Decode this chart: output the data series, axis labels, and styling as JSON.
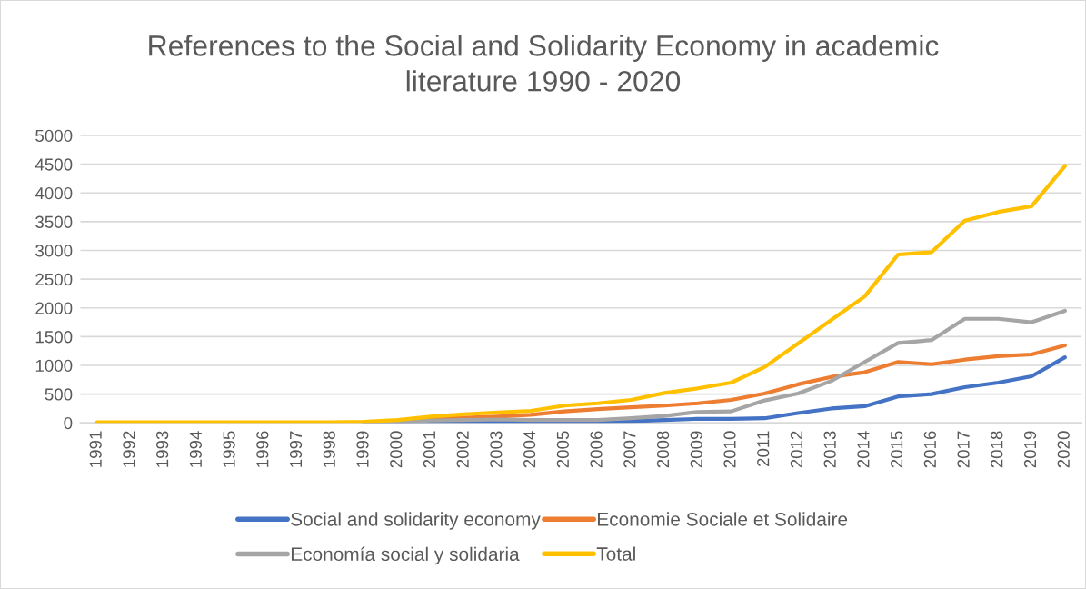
{
  "chart_data": {
    "type": "line",
    "title": "References to the Social and Solidarity Economy in academic\nliterature 1990 - 2020",
    "categories": [
      "1991",
      "1992",
      "1993",
      "1994",
      "1995",
      "1996",
      "1997",
      "1998",
      "1999",
      "2000",
      "2001",
      "2002",
      "2003",
      "2004",
      "2005",
      "2006",
      "2007",
      "2008",
      "2009",
      "2010",
      "2011",
      "2012",
      "2013",
      "2014",
      "2015",
      "2016",
      "2017",
      "2018",
      "2019",
      "2020"
    ],
    "series": [
      {
        "name": "Social and solidarity economy",
        "color": "#4472c4",
        "values": [
          null,
          null,
          null,
          null,
          null,
          null,
          null,
          null,
          0,
          0,
          10,
          10,
          10,
          10,
          20,
          20,
          30,
          50,
          70,
          70,
          80,
          170,
          250,
          290,
          460,
          500,
          620,
          700,
          810,
          1140
        ]
      },
      {
        "name": "Economie Sociale et Solidaire",
        "color": "#ed7d31",
        "values": [
          null,
          null,
          null,
          null,
          null,
          null,
          null,
          null,
          null,
          30,
          60,
          90,
          110,
          140,
          200,
          240,
          270,
          300,
          340,
          400,
          510,
          670,
          800,
          880,
          1060,
          1020,
          1100,
          1160,
          1190,
          1350
        ]
      },
      {
        "name": "Economía social y solidaria",
        "color": "#a5a5a5",
        "values": [
          null,
          null,
          null,
          null,
          null,
          null,
          null,
          null,
          0,
          10,
          40,
          50,
          60,
          50,
          50,
          50,
          80,
          120,
          190,
          200,
          390,
          510,
          730,
          1060,
          1390,
          1440,
          1810,
          1810,
          1750,
          1950
        ]
      },
      {
        "name": "Total",
        "color": "#ffc000",
        "values": [
          10,
          10,
          10,
          10,
          10,
          10,
          10,
          10,
          20,
          50,
          110,
          150,
          180,
          210,
          300,
          340,
          400,
          520,
          600,
          700,
          970,
          1380,
          1790,
          2200,
          2930,
          2970,
          3520,
          3670,
          3770,
          4470
        ]
      }
    ],
    "ylim": [
      0,
      5000
    ],
    "yticks": [
      0,
      500,
      1000,
      1500,
      2000,
      2500,
      3000,
      3500,
      4000,
      4500,
      5000
    ],
    "grid": "y",
    "legend": "bottom"
  }
}
